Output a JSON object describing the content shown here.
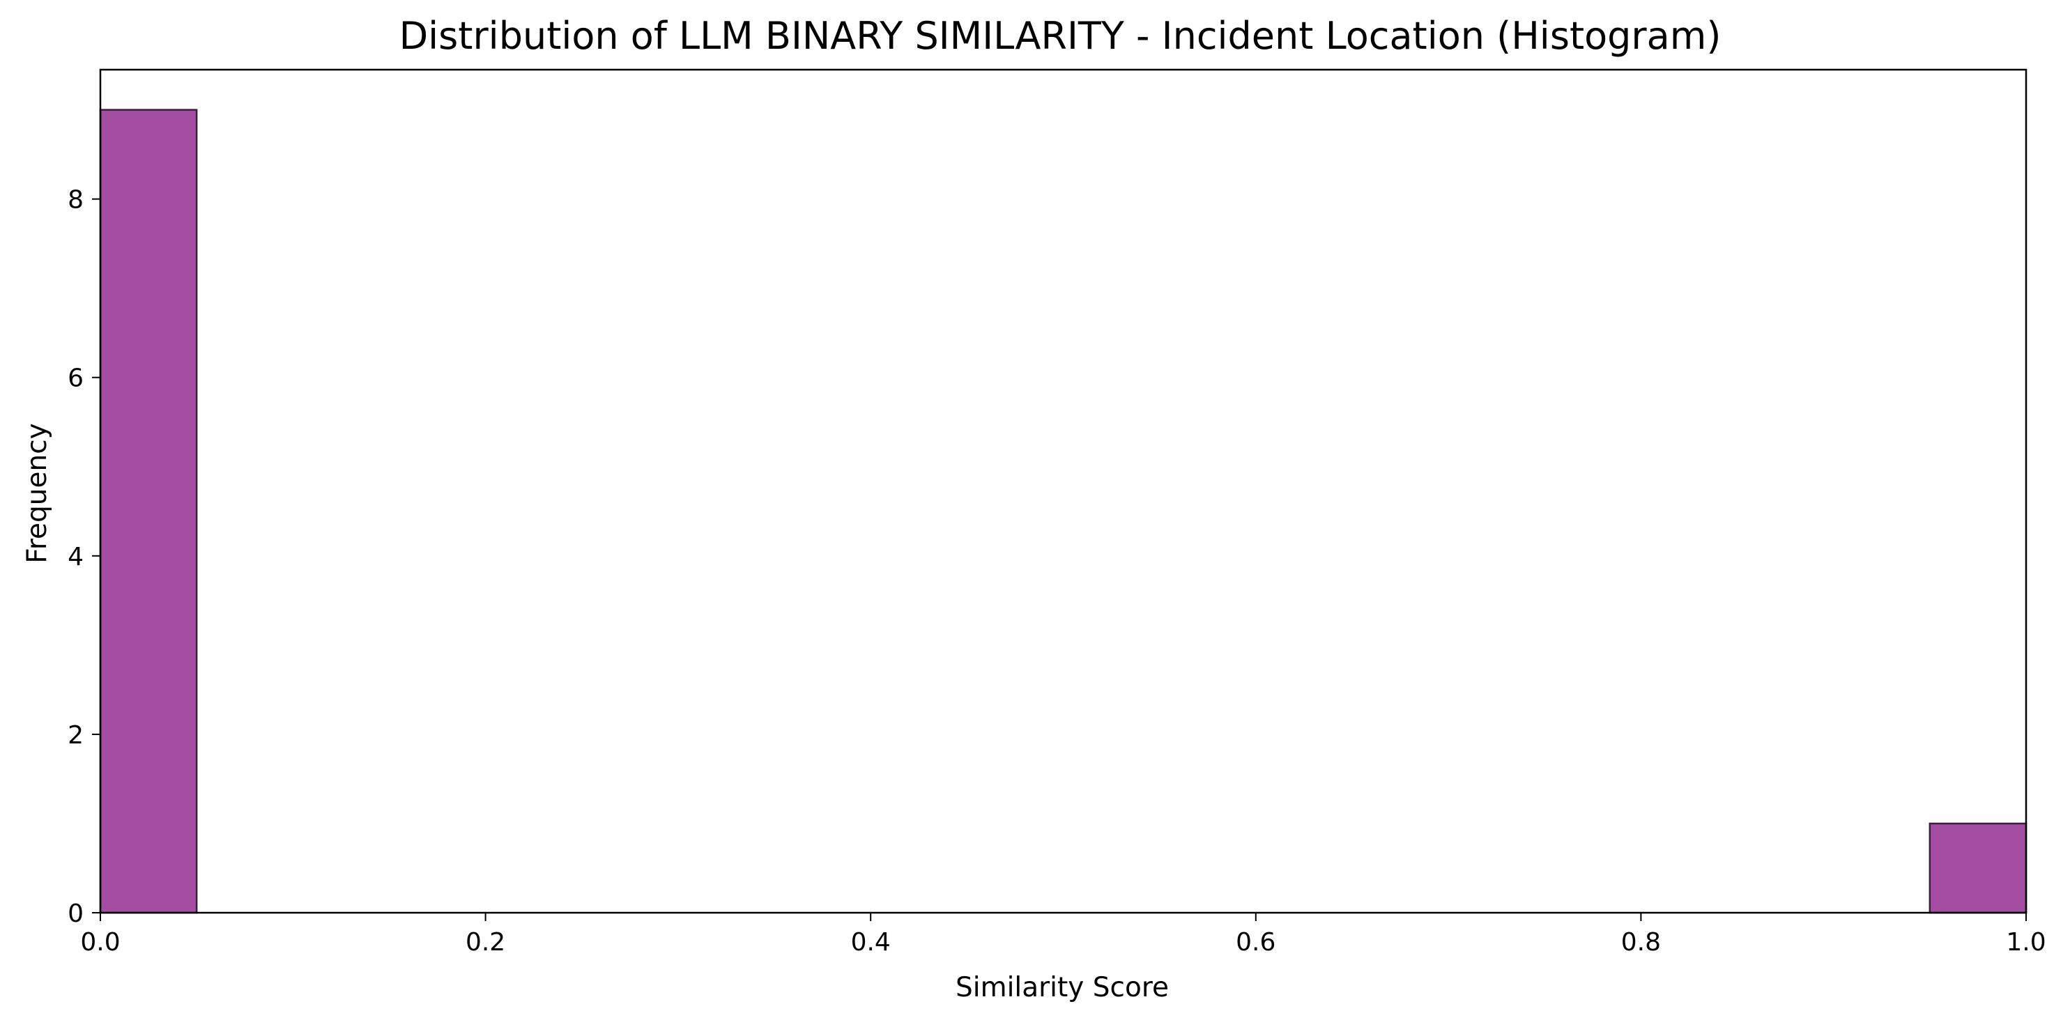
{
  "chart_data": {
    "type": "bar",
    "title": "Distribution of LLM BINARY SIMILARITY - Incident Location (Histogram)",
    "xlabel": "Similarity Score",
    "ylabel": "Frequency",
    "xlim": [
      0.0,
      1.0
    ],
    "ylim": [
      0,
      9.45
    ],
    "bins": [
      {
        "x0": 0.0,
        "x1": 0.05,
        "count": 9
      },
      {
        "x0": 0.05,
        "x1": 0.1,
        "count": 0
      },
      {
        "x0": 0.1,
        "x1": 0.15,
        "count": 0
      },
      {
        "x0": 0.15,
        "x1": 0.2,
        "count": 0
      },
      {
        "x0": 0.2,
        "x1": 0.25,
        "count": 0
      },
      {
        "x0": 0.25,
        "x1": 0.3,
        "count": 0
      },
      {
        "x0": 0.3,
        "x1": 0.35,
        "count": 0
      },
      {
        "x0": 0.35,
        "x1": 0.4,
        "count": 0
      },
      {
        "x0": 0.4,
        "x1": 0.45,
        "count": 0
      },
      {
        "x0": 0.45,
        "x1": 0.5,
        "count": 0
      },
      {
        "x0": 0.5,
        "x1": 0.55,
        "count": 0
      },
      {
        "x0": 0.55,
        "x1": 0.6,
        "count": 0
      },
      {
        "x0": 0.6,
        "x1": 0.65,
        "count": 0
      },
      {
        "x0": 0.65,
        "x1": 0.7,
        "count": 0
      },
      {
        "x0": 0.7,
        "x1": 0.75,
        "count": 0
      },
      {
        "x0": 0.75,
        "x1": 0.8,
        "count": 0
      },
      {
        "x0": 0.8,
        "x1": 0.85,
        "count": 0
      },
      {
        "x0": 0.85,
        "x1": 0.9,
        "count": 0
      },
      {
        "x0": 0.9,
        "x1": 0.95,
        "count": 0
      },
      {
        "x0": 0.95,
        "x1": 1.0,
        "count": 1
      }
    ],
    "x_ticks": [
      {
        "value": 0.0,
        "label": "0.0"
      },
      {
        "value": 0.2,
        "label": "0.2"
      },
      {
        "value": 0.4,
        "label": "0.4"
      },
      {
        "value": 0.6,
        "label": "0.6"
      },
      {
        "value": 0.8,
        "label": "0.8"
      },
      {
        "value": 1.0,
        "label": "1.0"
      }
    ],
    "y_ticks": [
      {
        "value": 0,
        "label": "0"
      },
      {
        "value": 2,
        "label": "2"
      },
      {
        "value": 4,
        "label": "4"
      },
      {
        "value": 6,
        "label": "6"
      },
      {
        "value": 8,
        "label": "8"
      }
    ],
    "bar_color": "#a44da3",
    "bar_edge_color": "#3a1f3a",
    "grid": false,
    "legend": "none"
  }
}
